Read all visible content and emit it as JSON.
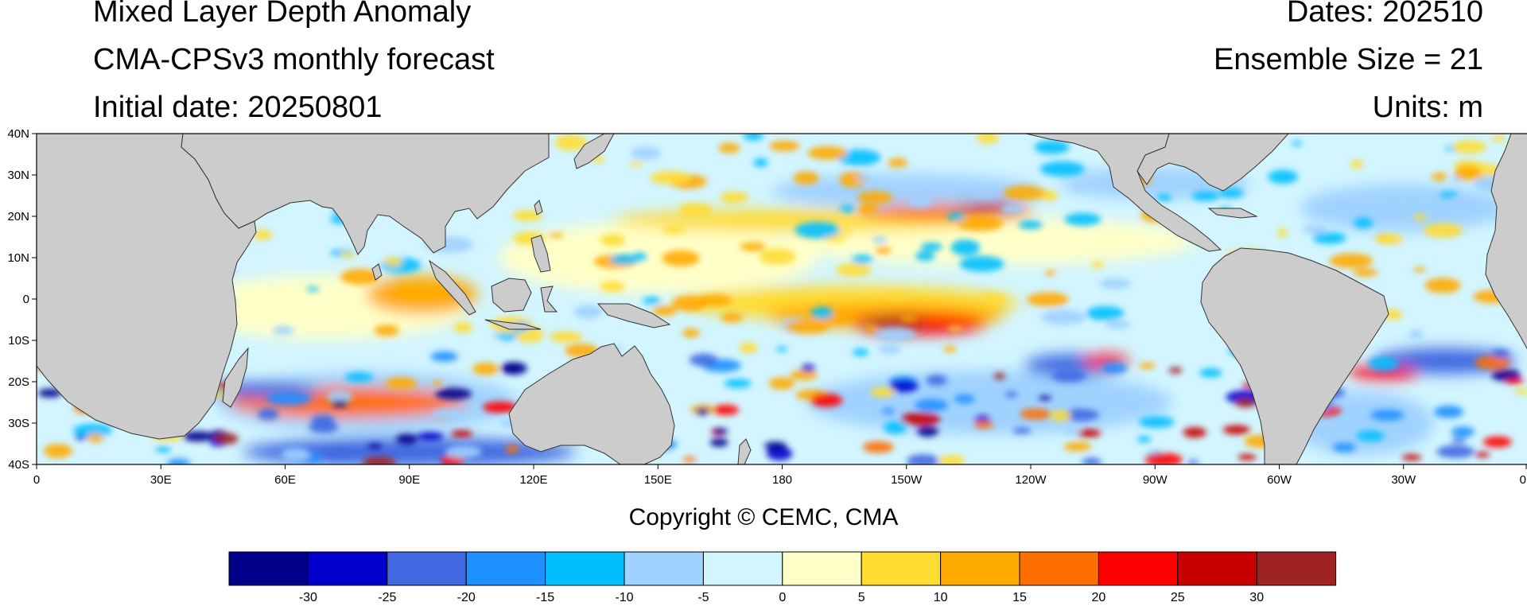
{
  "header": {
    "title": "Mixed Layer Depth Anomaly",
    "model": "CMA-CPSv3 monthly forecast",
    "initial_date": "Initial date: 20250801",
    "dates": "Dates: 202510",
    "ensemble": "Ensemble Size = 21",
    "units": "Units: m"
  },
  "map": {
    "lat_range": [
      -40,
      40
    ],
    "lon_range": [
      0,
      360
    ],
    "lat_ticks": [
      "40N",
      "30N",
      "20N",
      "10N",
      "0",
      "10S",
      "20S",
      "30S",
      "40S"
    ],
    "lon_ticks": [
      "0",
      "30E",
      "60E",
      "90E",
      "120E",
      "150E",
      "180",
      "150W",
      "120W",
      "90W",
      "60W",
      "30W",
      "0"
    ],
    "land_color": "#cccccc"
  },
  "footer": {
    "copyright": "Copyright © CEMC, CMA"
  },
  "colorbar": {
    "colors": [
      "#00008b",
      "#0000cd",
      "#4169e1",
      "#1e90ff",
      "#00bfff",
      "#a0d2ff",
      "#d2f5ff",
      "#ffffc8",
      "#ffdc32",
      "#ffaa00",
      "#ff6e00",
      "#ff0000",
      "#c80000",
      "#a02323"
    ],
    "labels": [
      "-30",
      "-25",
      "-20",
      "-15",
      "-10",
      "-5",
      "0",
      "5",
      "10",
      "15",
      "20",
      "25",
      "30"
    ]
  },
  "anomaly_features": [
    {
      "name": "central-pacific-equatorial-positive",
      "lon": 205,
      "lat": -4,
      "value": 25
    },
    {
      "name": "north-pacific-band-positive",
      "lon": 210,
      "lat": 20,
      "value": 15
    },
    {
      "name": "eastern-indian-positive",
      "lon": 93,
      "lat": 1,
      "value": 12
    },
    {
      "name": "southern-indian-mixed",
      "lon": 75,
      "lat": -25,
      "value": -25
    },
    {
      "name": "east-pacific-south-negative",
      "lon": 250,
      "lat": -16,
      "value": -25
    },
    {
      "name": "south-atlantic-negative",
      "lon": 340,
      "lat": -15,
      "value": -25
    }
  ]
}
